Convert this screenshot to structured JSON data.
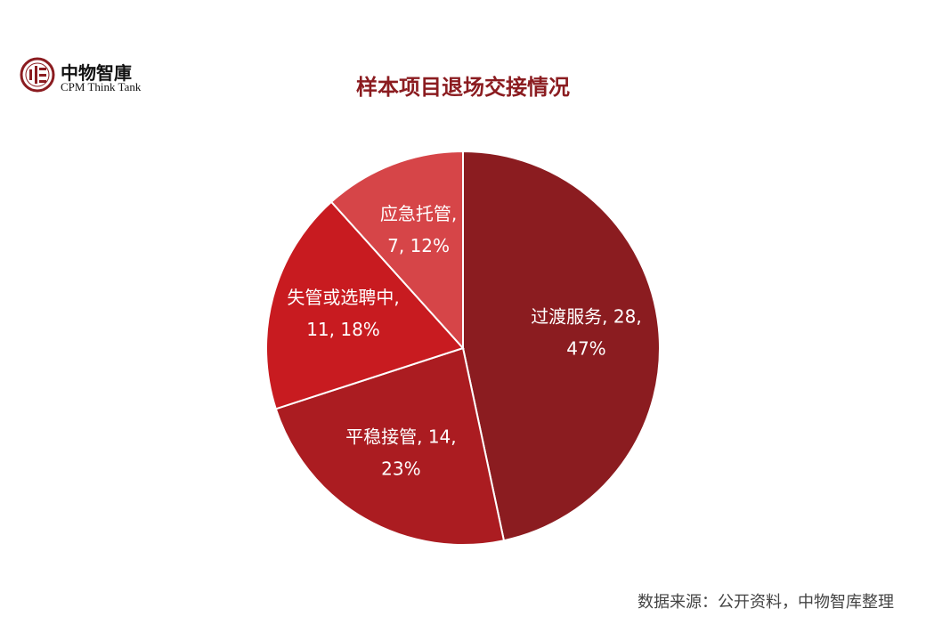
{
  "logo": {
    "cn": "中物智庫",
    "en": "CPM Think Tank"
  },
  "chart_data": {
    "type": "pie",
    "title": "样本项目退场交接情况",
    "start": "top",
    "direction": "clockwise",
    "slices": [
      {
        "label": "过渡服务",
        "value": 28,
        "percent": "47%",
        "line1": "过渡服务, 28,",
        "line2": "47%",
        "color": "#8b1c20"
      },
      {
        "label": "平稳接管",
        "value": 14,
        "percent": "23%",
        "line1": "平稳接管, 14,",
        "line2": "23%",
        "color": "#ab1c21"
      },
      {
        "label": "失管或选聘中",
        "value": 11,
        "percent": "18%",
        "line1": "失管或选聘中,",
        "line2": "11, 18%",
        "color": "#c81b20"
      },
      {
        "label": "应急托管",
        "value": 7,
        "percent": "12%",
        "line1": "应急托管,",
        "line2": "7, 12%",
        "color": "#d64548"
      }
    ]
  },
  "source": "数据来源：公开资料，中物智库整理"
}
